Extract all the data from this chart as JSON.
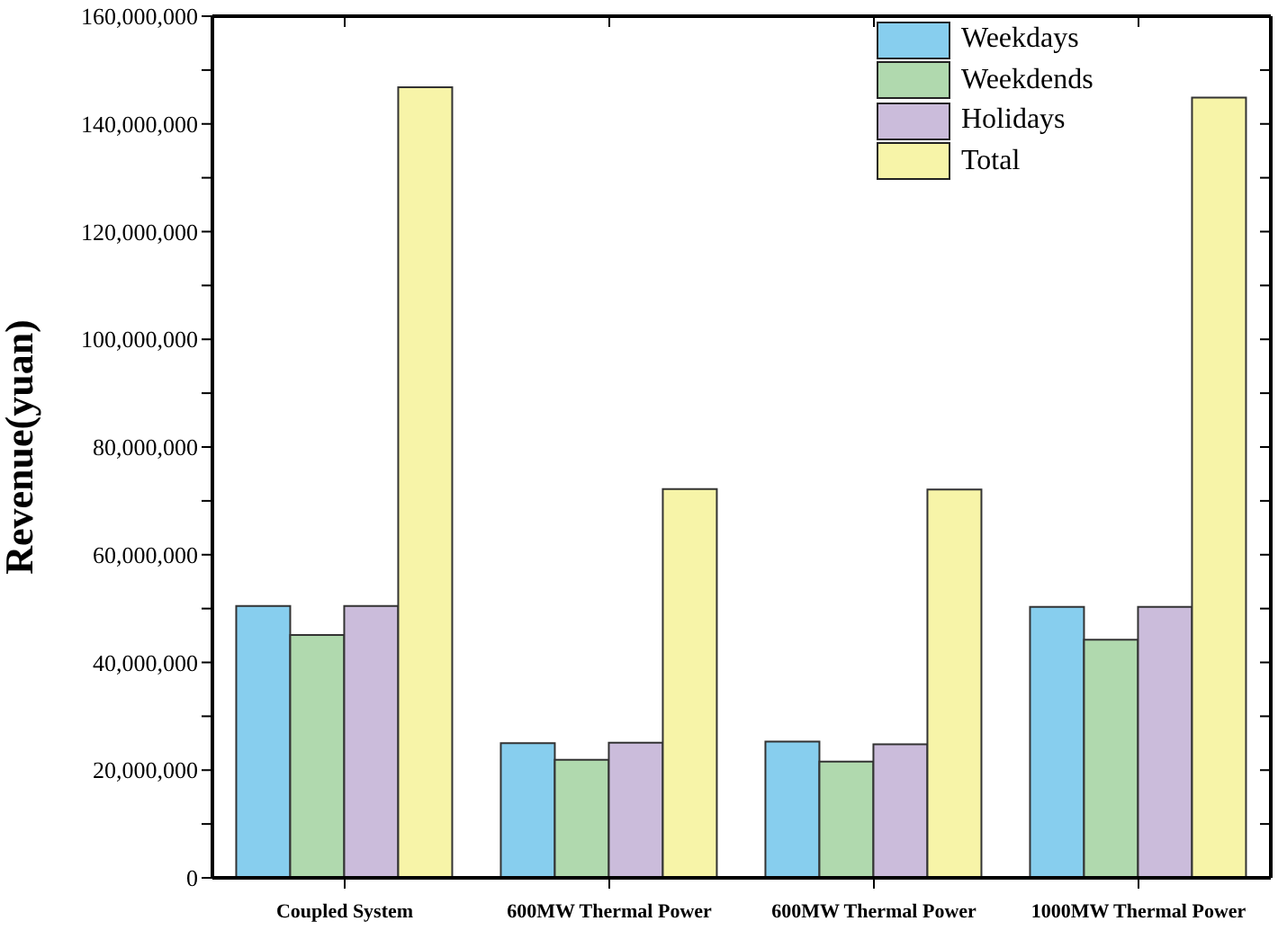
{
  "chart_data": {
    "type": "bar",
    "ylabel": "Revenue(yuan)",
    "categories": [
      "Coupled System",
      "600MW Thermal Power",
      "600MW Thermal Power",
      "1000MW Thermal Power"
    ],
    "series": [
      {
        "name": "Weekdays",
        "color": "#87ceee",
        "values": [
          50500000,
          25000000,
          25300000,
          50300000
        ]
      },
      {
        "name": "Weekdends",
        "color": "#b0d9ae",
        "values": [
          45100000,
          21900000,
          21600000,
          44200000
        ]
      },
      {
        "name": "Holidays",
        "color": "#cbbcdb",
        "values": [
          50500000,
          25100000,
          24800000,
          50300000
        ]
      },
      {
        "name": "Total",
        "color": "#f7f4a8",
        "values": [
          146800000,
          72200000,
          72100000,
          144900000
        ]
      }
    ],
    "ylim": [
      0,
      160000000
    ],
    "yticks": [
      0,
      {
        "value": 10000000,
        "label": null
      },
      {
        "value": 20000000,
        "label": "20,000,000"
      },
      {
        "value": 30000000,
        "label": null
      },
      {
        "value": 40000000,
        "label": "40,000,000"
      },
      {
        "value": 50000000,
        "label": null
      },
      {
        "value": 60000000,
        "label": "60,000,000"
      },
      {
        "value": 70000000,
        "label": null
      },
      {
        "value": 80000000,
        "label": "80,000,000"
      },
      {
        "value": 90000000,
        "label": null
      },
      {
        "value": 100000000,
        "label": "100,000,000"
      },
      {
        "value": 110000000,
        "label": null
      },
      {
        "value": 120000000,
        "label": "120,000,000"
      },
      {
        "value": 130000000,
        "label": null
      },
      {
        "value": 140000000,
        "label": "140,000,000"
      },
      {
        "value": 150000000,
        "label": null
      },
      {
        "value": 160000000,
        "label": "160,000,000"
      }
    ],
    "grid": false,
    "legend": "top right"
  }
}
